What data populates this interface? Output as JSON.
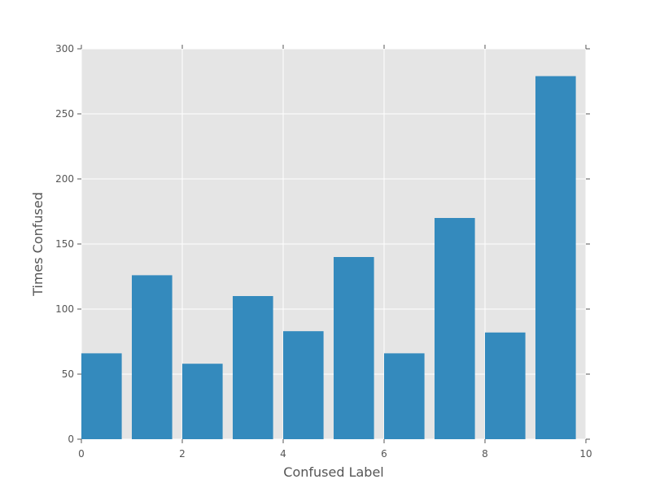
{
  "chart_data": {
    "type": "bar",
    "title": "",
    "xlabel": "Confused Label",
    "ylabel": "Times Confused",
    "x": [
      0,
      1,
      2,
      3,
      4,
      5,
      6,
      7,
      8,
      9
    ],
    "values": [
      66,
      126,
      58,
      110,
      83,
      140,
      66,
      170,
      82,
      279
    ],
    "bar_width": 0.8,
    "xlim": [
      0,
      10
    ],
    "ylim": [
      0,
      300
    ],
    "xticks": [
      0,
      2,
      4,
      6,
      8,
      10
    ],
    "xtick_labels": [
      "0",
      "2",
      "4",
      "6",
      "8",
      "10"
    ],
    "yticks": [
      0,
      50,
      100,
      150,
      200,
      250,
      300
    ],
    "ytick_labels": [
      "0",
      "50",
      "100",
      "150",
      "200",
      "250",
      "300"
    ],
    "grid": true,
    "colors": {
      "bar": "#348abd",
      "plot_background": "#e5e5e5",
      "grid": "#ffffff",
      "tick": "#555555",
      "text": "#555555"
    }
  }
}
